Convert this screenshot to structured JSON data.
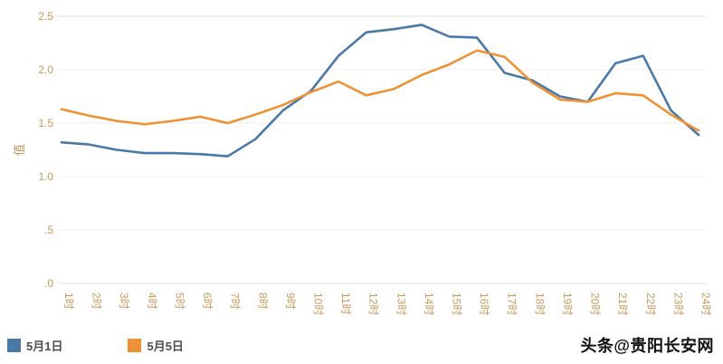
{
  "watermark": "头条@贵阳长安网",
  "chart_data": {
    "type": "line",
    "title": "",
    "xlabel": "",
    "ylabel": "值",
    "ylim": [
      0,
      2.5
    ],
    "yticks": [
      0,
      0.5,
      1.0,
      1.5,
      2.0,
      2.5
    ],
    "ytick_labels": [
      ".0",
      ".5",
      "1.0",
      "1.5",
      "2.0",
      "2.5"
    ],
    "grid": true,
    "legend_position": "bottom-left",
    "axis_label_color": "#c69a5e",
    "grid_color": "#efefef",
    "border_color": "#dcdcdc",
    "categories": [
      "1时",
      "2时",
      "3时",
      "4时",
      "5时",
      "6时",
      "7时",
      "8时",
      "9时",
      "10时",
      "11时",
      "12时",
      "13时",
      "14时",
      "15时",
      "16时",
      "17时",
      "18时",
      "19时",
      "20时",
      "21时",
      "22时",
      "23时",
      "24时"
    ],
    "series": [
      {
        "name": "5月1日",
        "color": "#4a79a8",
        "values": [
          1.32,
          1.3,
          1.25,
          1.22,
          1.22,
          1.21,
          1.19,
          1.35,
          1.62,
          1.8,
          2.13,
          2.35,
          2.38,
          2.42,
          2.31,
          2.3,
          1.97,
          1.9,
          1.75,
          1.7,
          2.06,
          2.13,
          1.62,
          1.39
        ]
      },
      {
        "name": "5月5日",
        "color": "#ef9135",
        "values": [
          1.63,
          1.57,
          1.52,
          1.49,
          1.52,
          1.56,
          1.5,
          1.58,
          1.67,
          1.79,
          1.89,
          1.76,
          1.82,
          1.95,
          2.05,
          2.18,
          2.12,
          1.88,
          1.72,
          1.7,
          1.78,
          1.76,
          1.58,
          1.43
        ]
      }
    ]
  }
}
